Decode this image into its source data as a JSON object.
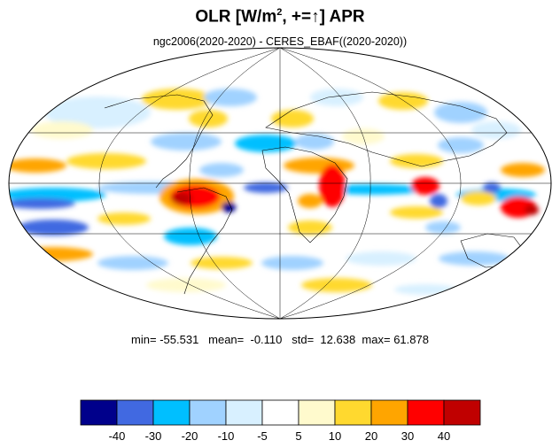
{
  "title": {
    "main": "OLR [W/m",
    "sup": "2",
    "rest": ", +=↑] APR"
  },
  "subtitle": "ngc2006(2020-2020) - CERES_EBAF((2020-2020))",
  "stats": {
    "min_label": "min=",
    "min": "-55.531",
    "mean_label": "mean=",
    "mean": "-0.110",
    "std_label": "std=",
    "std": "12.638",
    "max_label": "max=",
    "max": "61.878"
  },
  "colorbar": {
    "colors": [
      "#00008b",
      "#4169e1",
      "#00bfff",
      "#a0d2ff",
      "#d8f0ff",
      "#ffffff",
      "#fffacd",
      "#ffd92f",
      "#ffa500",
      "#ff0000",
      "#c00000"
    ],
    "labels": [
      "-40",
      "-30",
      "-20",
      "-10",
      "-5",
      "5",
      "10",
      "20",
      "30",
      "40"
    ]
  },
  "map": {
    "projection": "mollweide",
    "graticule": "lines every 30° latitude and 60° longitude",
    "background": "#ffffff",
    "coastline_color": "#000000"
  }
}
